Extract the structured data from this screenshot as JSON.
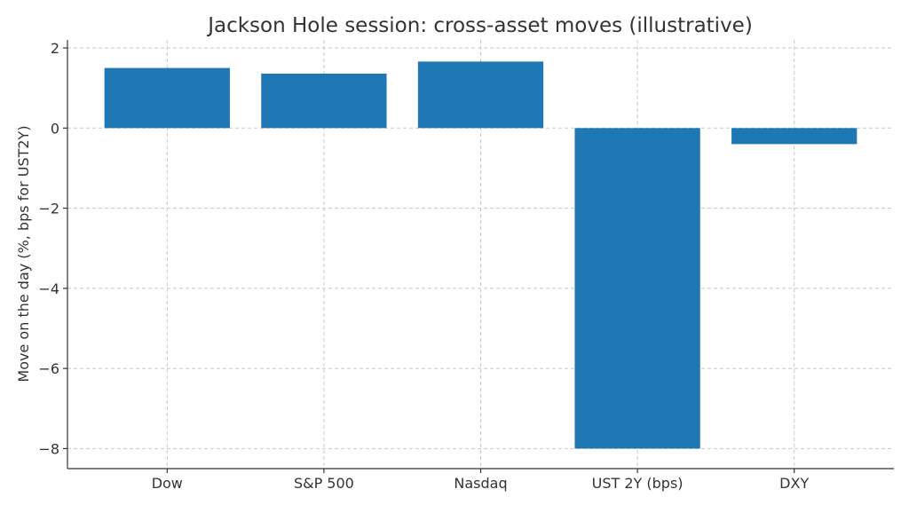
{
  "chart_data": {
    "type": "bar",
    "title": "Jackson Hole session: cross-asset moves (illustrative)",
    "xlabel": "",
    "ylabel": "Move on the day (%, bps for UST2Y)",
    "categories": [
      "Dow",
      "S&P 500",
      "Nasdaq",
      "UST 2Y (bps)",
      "DXY"
    ],
    "values": [
      1.5,
      1.36,
      1.66,
      -8.0,
      -0.4
    ],
    "ylim": [
      -8.5,
      2.2
    ],
    "yticks": [
      2,
      0,
      -2,
      -4,
      -6,
      -8
    ],
    "ytick_labels": [
      "2",
      "0",
      "−2",
      "−4",
      "−6",
      "−8"
    ],
    "grid": true,
    "bar_color": "#1f77b4"
  }
}
